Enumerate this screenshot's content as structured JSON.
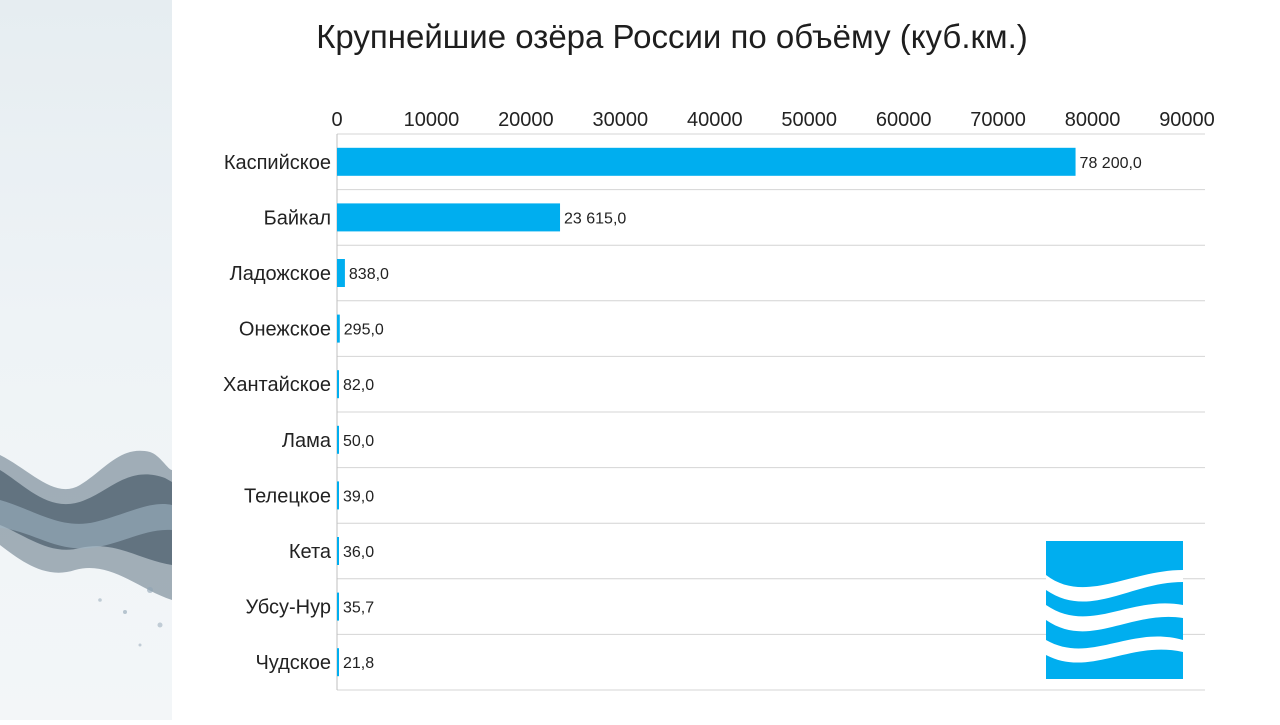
{
  "chart_data": {
    "type": "bar",
    "orientation": "horizontal",
    "title": "Крупнейшие озёра России по объёму (куб.км.)",
    "categories": [
      "Каспийское",
      "Байкал",
      "Ладожское",
      "Онежское",
      "Хантайское",
      "Лама",
      "Телецкое",
      "Кета",
      "Убсу-Нур",
      "Чудское"
    ],
    "values": [
      78200,
      23615,
      838,
      295,
      82,
      50,
      39,
      36,
      35.7,
      21.8
    ],
    "value_labels": [
      "78 200,0",
      "23 615,0",
      "838,0",
      "295,0",
      "82,0",
      "50,0",
      "39,0",
      "36,0",
      "35,7",
      "21,8"
    ],
    "xlim": [
      0,
      90000
    ],
    "x_ticks": [
      "0",
      "10000",
      "20000",
      "30000",
      "40000",
      "50000",
      "60000",
      "70000",
      "80000",
      "90000"
    ],
    "x_axis_position": "top",
    "grid": "horizontal row separators",
    "legend": "none",
    "bar_color": "#00aeef"
  },
  "decor": {
    "logo": "wave-logo",
    "logo_color": "#00aeef",
    "left_panel": "water-splash-image"
  }
}
